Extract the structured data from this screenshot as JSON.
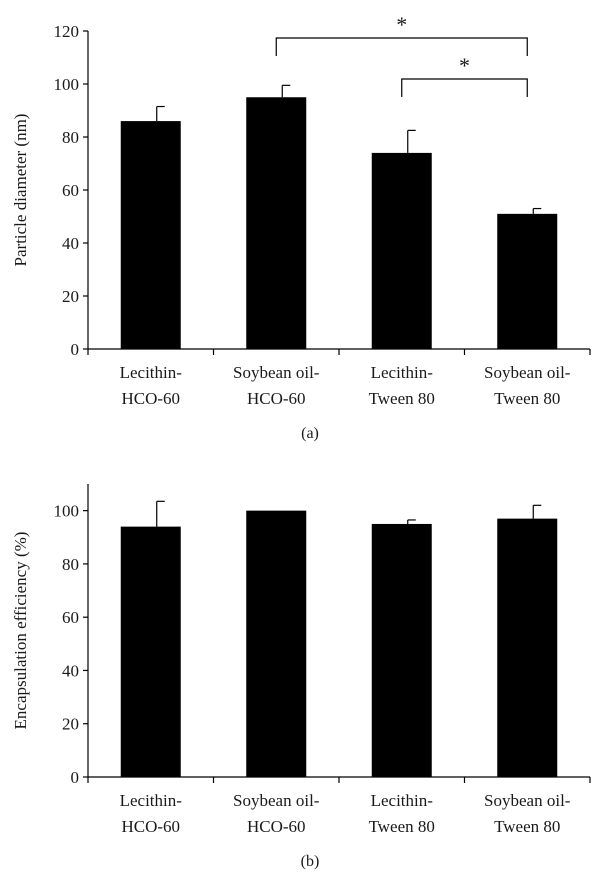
{
  "chart_data": [
    {
      "type": "bar",
      "panel_label": "(a)",
      "categories": [
        [
          "Lecithin-",
          "HCO-60"
        ],
        [
          "Soybean oil-",
          "HCO-60"
        ],
        [
          "Lecithin-",
          "Tween 80"
        ],
        [
          "Soybean oil-",
          "Tween 80"
        ]
      ],
      "values": [
        86,
        95,
        74,
        51
      ],
      "error_bars": [
        5.5,
        4.5,
        8.5,
        2
      ],
      "ylabel": "Particle diameter (nm)",
      "ylim": [
        0,
        120
      ],
      "yticks": [
        0,
        20,
        40,
        60,
        80,
        100,
        120
      ],
      "bar_color": "#000000",
      "grid": false,
      "significance": [
        {
          "from": 1,
          "to": 3,
          "label": "*"
        },
        {
          "from": 2,
          "to": 3,
          "label": "*"
        }
      ]
    },
    {
      "type": "bar",
      "panel_label": "(b)",
      "categories": [
        [
          "Lecithin-",
          "HCO-60"
        ],
        [
          "Soybean oil-",
          "HCO-60"
        ],
        [
          "Lecithin-",
          "Tween 80"
        ],
        [
          "Soybean oil-",
          "Tween 80"
        ]
      ],
      "values": [
        94,
        100,
        95,
        97
      ],
      "error_bars": [
        9.5,
        0,
        1.5,
        5
      ],
      "ylabel": "Encapsulation efficiency (%)",
      "ylim": [
        0,
        110
      ],
      "yticks": [
        0,
        20,
        40,
        60,
        80,
        100
      ],
      "bar_color": "#000000",
      "grid": false,
      "significance": []
    }
  ]
}
